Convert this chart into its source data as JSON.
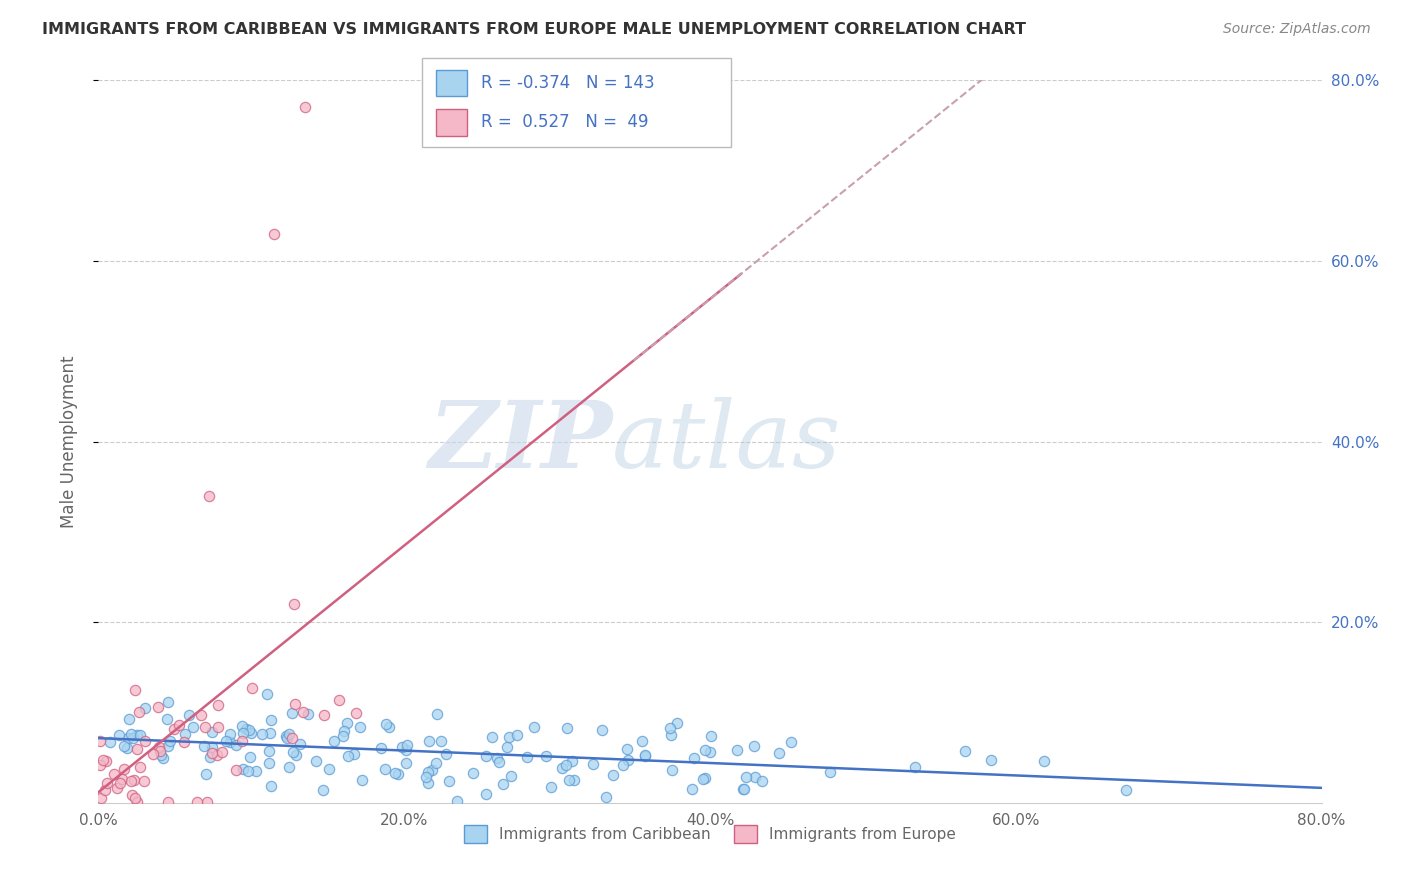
{
  "title": "IMMIGRANTS FROM CARIBBEAN VS IMMIGRANTS FROM EUROPE MALE UNEMPLOYMENT CORRELATION CHART",
  "source": "Source: ZipAtlas.com",
  "ylabel": "Male Unemployment",
  "xmin": 0.0,
  "xmax": 0.8,
  "ymin": 0.0,
  "ymax": 0.8,
  "xtick_labels": [
    "0.0%",
    "20.0%",
    "40.0%",
    "60.0%",
    "80.0%"
  ],
  "xtick_vals": [
    0.0,
    0.2,
    0.4,
    0.6,
    0.8
  ],
  "ytick_vals": [
    0.2,
    0.4,
    0.6,
    0.8
  ],
  "right_ytick_labels": [
    "20.0%",
    "40.0%",
    "60.0%",
    "80.0%"
  ],
  "series1_color": "#A8D4F0",
  "series1_edge": "#5B9BD5",
  "series2_color": "#F5B8C8",
  "series2_edge": "#D06080",
  "reg1_color": "#4472C4",
  "reg2_color": "#D06080",
  "reg2_dash_color": "#C8A0B0",
  "R1": -0.374,
  "N1": 143,
  "R2": 0.527,
  "N2": 49,
  "legend_label1": "Immigrants from Caribbean",
  "legend_label2": "Immigrants from Europe",
  "watermark_zip": "ZIP",
  "watermark_atlas": "atlas",
  "background": "#FFFFFF",
  "grid_color": "#CCCCCC",
  "title_color": "#333333",
  "axis_color": "#666666",
  "blue_text": "#4472C4"
}
